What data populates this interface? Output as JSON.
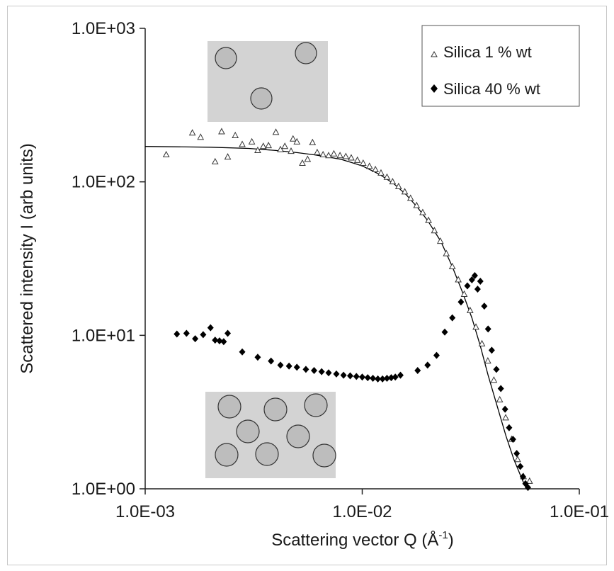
{
  "chart_data": {
    "type": "scatter",
    "xscale": "log",
    "yscale": "log",
    "xlim": [
      0.001,
      0.1
    ],
    "ylim": [
      1,
      1000
    ],
    "xticks": [
      0.001,
      0.01,
      0.1
    ],
    "xtick_labels": [
      "1.0E-03",
      "1.0E-02",
      "1.0E-01"
    ],
    "yticks": [
      1,
      10,
      100,
      1000
    ],
    "ytick_labels": [
      "1.0E+00",
      "1.0E+01",
      "1.0E+02",
      "1.0E+03"
    ],
    "xlabel": "Scattering vector Q (Å",
    "xlabel_sup": "-1",
    "xlabel_end": ")",
    "ylabel": "Scattered intensity I (arb units)",
    "grid": false,
    "legend_position": "top-right",
    "series": [
      {
        "name": "Silica 1 % wt",
        "marker": "open-triangle",
        "color": "#333333",
        "points": [
          [
            0.00125,
            150
          ],
          [
            0.00165,
            208
          ],
          [
            0.0018,
            195
          ],
          [
            0.0021,
            135
          ],
          [
            0.00225,
            212
          ],
          [
            0.0024,
            145
          ],
          [
            0.0026,
            200
          ],
          [
            0.0028,
            175
          ],
          [
            0.0031,
            182
          ],
          [
            0.0033,
            160
          ],
          [
            0.0035,
            170
          ],
          [
            0.0037,
            172
          ],
          [
            0.004,
            210
          ],
          [
            0.0042,
            162
          ],
          [
            0.0044,
            170
          ],
          [
            0.0047,
            158
          ],
          [
            0.0048,
            190
          ],
          [
            0.005,
            182
          ],
          [
            0.0053,
            132
          ],
          [
            0.0056,
            140
          ],
          [
            0.0059,
            180
          ],
          [
            0.0062,
            155
          ],
          [
            0.0066,
            150
          ],
          [
            0.007,
            148
          ],
          [
            0.0074,
            152
          ],
          [
            0.0079,
            148
          ],
          [
            0.0084,
            146
          ],
          [
            0.0089,
            143
          ],
          [
            0.0095,
            138
          ],
          [
            0.0101,
            132
          ],
          [
            0.0108,
            126
          ],
          [
            0.0115,
            120
          ],
          [
            0.0122,
            114
          ],
          [
            0.013,
            107
          ],
          [
            0.0138,
            100
          ],
          [
            0.0147,
            93
          ],
          [
            0.0157,
            86
          ],
          [
            0.0167,
            78
          ],
          [
            0.0178,
            70
          ],
          [
            0.019,
            63
          ],
          [
            0.0202,
            56
          ],
          [
            0.0215,
            48
          ],
          [
            0.0229,
            41
          ],
          [
            0.0244,
            34
          ],
          [
            0.026,
            28
          ],
          [
            0.0277,
            23
          ],
          [
            0.0295,
            18.5
          ],
          [
            0.0314,
            14.5
          ],
          [
            0.0334,
            11.3
          ],
          [
            0.0356,
            8.8
          ],
          [
            0.0379,
            6.8
          ],
          [
            0.0404,
            5.1
          ],
          [
            0.043,
            3.8
          ],
          [
            0.0458,
            2.9
          ],
          [
            0.0488,
            2.1
          ],
          [
            0.052,
            1.55
          ],
          [
            0.0553,
            1.2
          ],
          [
            0.059,
            1.12
          ]
        ]
      },
      {
        "name": "Silica 40 % wt",
        "marker": "filled-diamond",
        "color": "#000000",
        "points": [
          [
            0.0014,
            10.2
          ],
          [
            0.00155,
            10.3
          ],
          [
            0.0017,
            9.5
          ],
          [
            0.00185,
            10.1
          ],
          [
            0.002,
            11.2
          ],
          [
            0.0021,
            9.3
          ],
          [
            0.0022,
            9.2
          ],
          [
            0.0023,
            9.1
          ],
          [
            0.0024,
            10.3
          ],
          [
            0.0028,
            7.8
          ],
          [
            0.0033,
            7.2
          ],
          [
            0.0038,
            6.8
          ],
          [
            0.0042,
            6.4
          ],
          [
            0.0046,
            6.3
          ],
          [
            0.005,
            6.2
          ],
          [
            0.0055,
            6.0
          ],
          [
            0.006,
            5.9
          ],
          [
            0.0065,
            5.8
          ],
          [
            0.007,
            5.7
          ],
          [
            0.0076,
            5.6
          ],
          [
            0.0082,
            5.5
          ],
          [
            0.0088,
            5.45
          ],
          [
            0.0094,
            5.4
          ],
          [
            0.01,
            5.35
          ],
          [
            0.0106,
            5.3
          ],
          [
            0.0112,
            5.25
          ],
          [
            0.0118,
            5.2
          ],
          [
            0.0124,
            5.2
          ],
          [
            0.013,
            5.25
          ],
          [
            0.0136,
            5.3
          ],
          [
            0.0142,
            5.35
          ],
          [
            0.015,
            5.5
          ],
          [
            0.018,
            5.9
          ],
          [
            0.02,
            6.4
          ],
          [
            0.022,
            7.4
          ],
          [
            0.024,
            10.5
          ],
          [
            0.026,
            13.0
          ],
          [
            0.0285,
            16.5
          ],
          [
            0.0305,
            21.0
          ],
          [
            0.032,
            23.0
          ],
          [
            0.033,
            24.5
          ],
          [
            0.034,
            20.0
          ],
          [
            0.035,
            22.5
          ],
          [
            0.0365,
            15.5
          ],
          [
            0.038,
            11.0
          ],
          [
            0.0395,
            8.0
          ],
          [
            0.0415,
            6.0
          ],
          [
            0.0435,
            4.5
          ],
          [
            0.0455,
            3.3
          ],
          [
            0.0475,
            2.5
          ],
          [
            0.0495,
            2.1
          ],
          [
            0.0515,
            1.7
          ],
          [
            0.0535,
            1.4
          ],
          [
            0.055,
            1.2
          ],
          [
            0.0565,
            1.08
          ],
          [
            0.058,
            1.02
          ]
        ]
      }
    ],
    "fit_curve": {
      "color": "#000000",
      "points": [
        [
          0.001,
          170
        ],
        [
          0.002,
          168
        ],
        [
          0.003,
          165
        ],
        [
          0.004,
          160
        ],
        [
          0.005,
          155
        ],
        [
          0.006,
          150
        ],
        [
          0.007,
          145
        ],
        [
          0.008,
          140
        ],
        [
          0.009,
          133
        ],
        [
          0.01,
          127
        ],
        [
          0.012,
          112
        ],
        [
          0.014,
          97
        ],
        [
          0.016,
          82
        ],
        [
          0.018,
          68
        ],
        [
          0.02,
          56
        ],
        [
          0.023,
          41
        ],
        [
          0.026,
          28
        ],
        [
          0.029,
          19
        ],
        [
          0.032,
          13
        ],
        [
          0.035,
          8.5
        ],
        [
          0.038,
          5.5
        ],
        [
          0.042,
          3.4
        ],
        [
          0.046,
          2.2
        ],
        [
          0.05,
          1.55
        ],
        [
          0.055,
          1.12
        ],
        [
          0.058,
          1.0
        ]
      ]
    }
  },
  "insets": {
    "fill": "#d3d3d3",
    "particle_fill": "#bdbdbd",
    "particle_stroke": "#333333",
    "dilute_particles": 3,
    "concentrated_particles": 8
  }
}
